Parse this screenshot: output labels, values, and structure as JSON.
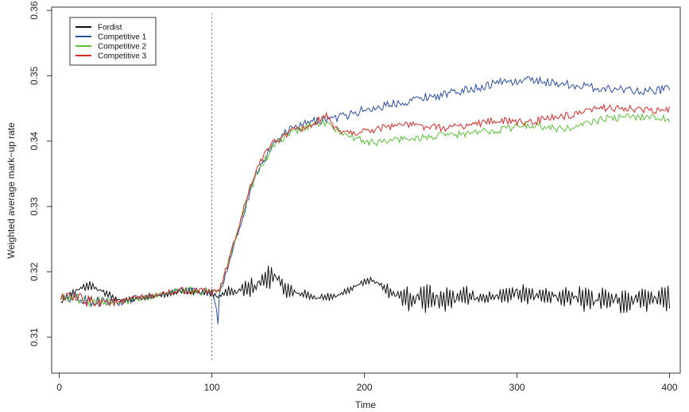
{
  "chart_data": {
    "type": "line",
    "title": "",
    "xlabel": "Time",
    "ylabel": "Weighted average mark−up rate",
    "xlim": [
      -5,
      407
    ],
    "ylim": [
      0.3045,
      0.3605
    ],
    "x_ticks": [
      {
        "value": 0,
        "label": "0"
      },
      {
        "value": 100,
        "label": "100"
      },
      {
        "value": 200,
        "label": "200"
      },
      {
        "value": 300,
        "label": "300"
      },
      {
        "value": 400,
        "label": "400"
      }
    ],
    "y_ticks": [
      {
        "value": 0.31,
        "label": "0.31"
      },
      {
        "value": 0.32,
        "label": "0.32"
      },
      {
        "value": 0.33,
        "label": "0.33"
      },
      {
        "value": 0.34,
        "label": "0.34"
      },
      {
        "value": 0.35,
        "label": "0.35"
      },
      {
        "value": 0.36,
        "label": "0.36"
      }
    ],
    "vline": {
      "x": 100,
      "ymin": 0.3065,
      "ymax": 0.3595,
      "style": "dotted",
      "color": "#555555"
    },
    "grid": false,
    "legend_position": "top-left",
    "series": [
      {
        "name": "Fordist",
        "color": "#111111",
        "x": [
          1,
          10,
          20,
          30,
          40,
          50,
          60,
          70,
          80,
          90,
          100,
          104,
          110,
          120,
          130,
          135,
          140,
          145,
          150,
          160,
          170,
          180,
          190,
          200,
          205,
          210,
          220,
          230,
          240,
          250,
          260,
          270,
          280,
          290,
          300,
          310,
          320,
          330,
          340,
          350,
          360,
          370,
          380,
          390,
          400
        ],
        "y": [
          0.3155,
          0.317,
          0.318,
          0.3168,
          0.3155,
          0.3158,
          0.3162,
          0.3165,
          0.317,
          0.317,
          0.3168,
          0.3162,
          0.317,
          0.3172,
          0.318,
          0.319,
          0.3195,
          0.3185,
          0.317,
          0.3165,
          0.316,
          0.3162,
          0.3172,
          0.3185,
          0.3188,
          0.318,
          0.3165,
          0.3158,
          0.316,
          0.3158,
          0.316,
          0.3162,
          0.316,
          0.3165,
          0.3168,
          0.3165,
          0.3162,
          0.316,
          0.3162,
          0.3158,
          0.316,
          0.3155,
          0.3158,
          0.316,
          0.3158
        ],
        "amplitude": [
          0.0008,
          0.0008,
          0.0007,
          0.0006,
          0.0005,
          0.0005,
          0.0005,
          0.0006,
          0.0006,
          0.0007,
          0.0007,
          0.0006,
          0.0007,
          0.0012,
          0.0018,
          0.002,
          0.0018,
          0.0016,
          0.0012,
          0.0009,
          0.0007,
          0.0006,
          0.0005,
          0.0005,
          0.0005,
          0.0006,
          0.0015,
          0.0022,
          0.0022,
          0.0022,
          0.002,
          0.0015,
          0.0008,
          0.0015,
          0.0018,
          0.0015,
          0.0012,
          0.0015,
          0.002,
          0.0022,
          0.002,
          0.0022,
          0.0022,
          0.0022,
          0.0022
        ]
      },
      {
        "name": "Competitive 1",
        "color": "#2c4fa0",
        "x": [
          1,
          10,
          20,
          30,
          40,
          50,
          60,
          70,
          80,
          90,
          100,
          103,
          104,
          105,
          110,
          115,
          120,
          125,
          130,
          140,
          150,
          160,
          170,
          180,
          190,
          200,
          210,
          220,
          230,
          240,
          250,
          260,
          270,
          280,
          290,
          300,
          310,
          320,
          330,
          340,
          350,
          360,
          370,
          380,
          390,
          400
        ],
        "y": [
          0.3162,
          0.316,
          0.3155,
          0.3155,
          0.3152,
          0.316,
          0.3162,
          0.3168,
          0.3172,
          0.317,
          0.3168,
          0.3145,
          0.312,
          0.3165,
          0.3205,
          0.3245,
          0.3282,
          0.3325,
          0.3355,
          0.3395,
          0.3415,
          0.3425,
          0.3432,
          0.3435,
          0.344,
          0.3448,
          0.3452,
          0.3458,
          0.3462,
          0.3468,
          0.347,
          0.3475,
          0.348,
          0.3485,
          0.3492,
          0.349,
          0.3495,
          0.349,
          0.3488,
          0.3485,
          0.3482,
          0.348,
          0.348,
          0.3478,
          0.3476,
          0.3482
        ],
        "amplitude": [
          0.0006,
          0.001,
          0.0012,
          0.001,
          0.0008,
          0.0006,
          0.0005,
          0.0005,
          0.0006,
          0.0008,
          0.0006,
          0.0002,
          0.0001,
          0.0003,
          0.0008,
          0.0008,
          0.0008,
          0.0008,
          0.0008,
          0.0008,
          0.0008,
          0.0008,
          0.0008,
          0.0008,
          0.0008,
          0.0008,
          0.0008,
          0.0008,
          0.0008,
          0.0008,
          0.0008,
          0.0008,
          0.0008,
          0.0008,
          0.0008,
          0.0008,
          0.0008,
          0.0008,
          0.0008,
          0.0008,
          0.0008,
          0.0008,
          0.0008,
          0.0008,
          0.0008,
          0.0008
        ]
      },
      {
        "name": "Competitive 2",
        "color": "#5bbf3a",
        "x": [
          1,
          10,
          20,
          30,
          40,
          50,
          60,
          70,
          80,
          90,
          100,
          105,
          110,
          115,
          120,
          125,
          130,
          140,
          150,
          160,
          170,
          175,
          180,
          190,
          200,
          210,
          220,
          230,
          240,
          250,
          260,
          270,
          280,
          290,
          300,
          310,
          320,
          330,
          340,
          350,
          360,
          370,
          380,
          390,
          400
        ],
        "y": [
          0.3162,
          0.316,
          0.3155,
          0.3155,
          0.3152,
          0.316,
          0.3162,
          0.3168,
          0.3172,
          0.317,
          0.3168,
          0.3172,
          0.321,
          0.325,
          0.3288,
          0.3325,
          0.3352,
          0.3392,
          0.341,
          0.342,
          0.3428,
          0.3428,
          0.3418,
          0.3408,
          0.34,
          0.3398,
          0.3402,
          0.3405,
          0.3405,
          0.3408,
          0.341,
          0.3412,
          0.3415,
          0.3418,
          0.3422,
          0.3425,
          0.3422,
          0.3418,
          0.3422,
          0.343,
          0.3435,
          0.3436,
          0.3438,
          0.3436,
          0.3434
        ],
        "amplitude": [
          0.0006,
          0.001,
          0.0012,
          0.001,
          0.0008,
          0.0006,
          0.0005,
          0.0005,
          0.0006,
          0.0008,
          0.0006,
          0.0004,
          0.0006,
          0.0007,
          0.0007,
          0.0007,
          0.0007,
          0.0007,
          0.0007,
          0.0007,
          0.0008,
          0.0008,
          0.0007,
          0.0007,
          0.0007,
          0.0007,
          0.0007,
          0.0007,
          0.0007,
          0.0007,
          0.0007,
          0.0007,
          0.0007,
          0.0007,
          0.0007,
          0.0007,
          0.0007,
          0.0007,
          0.0007,
          0.0007,
          0.0007,
          0.0007,
          0.0007,
          0.0007,
          0.0007
        ]
      },
      {
        "name": "Competitive 3",
        "color": "#d42a2a",
        "x": [
          1,
          10,
          20,
          30,
          40,
          50,
          60,
          70,
          80,
          90,
          100,
          105,
          110,
          115,
          120,
          125,
          130,
          140,
          150,
          160,
          170,
          175,
          180,
          190,
          200,
          210,
          220,
          230,
          240,
          250,
          260,
          270,
          280,
          290,
          300,
          310,
          320,
          330,
          340,
          350,
          360,
          370,
          380,
          390,
          400
        ],
        "y": [
          0.3162,
          0.316,
          0.3155,
          0.3155,
          0.3152,
          0.316,
          0.3162,
          0.3168,
          0.3172,
          0.317,
          0.3168,
          0.3172,
          0.3208,
          0.3248,
          0.3288,
          0.3328,
          0.3362,
          0.3398,
          0.3412,
          0.342,
          0.343,
          0.3435,
          0.342,
          0.3412,
          0.3415,
          0.342,
          0.3425,
          0.3425,
          0.3422,
          0.342,
          0.3422,
          0.3425,
          0.343,
          0.3432,
          0.3428,
          0.343,
          0.3435,
          0.3438,
          0.344,
          0.3448,
          0.3452,
          0.345,
          0.3448,
          0.3446,
          0.3448
        ],
        "amplitude": [
          0.0006,
          0.001,
          0.0012,
          0.001,
          0.0008,
          0.0006,
          0.0005,
          0.0005,
          0.0006,
          0.0008,
          0.0006,
          0.0004,
          0.0006,
          0.0007,
          0.0007,
          0.0007,
          0.0007,
          0.0007,
          0.0007,
          0.0007,
          0.0009,
          0.001,
          0.0007,
          0.0007,
          0.0007,
          0.0007,
          0.0007,
          0.0007,
          0.0007,
          0.0007,
          0.0007,
          0.0007,
          0.0007,
          0.0007,
          0.0007,
          0.0007,
          0.0007,
          0.0007,
          0.0007,
          0.0007,
          0.0007,
          0.0007,
          0.0007,
          0.0007,
          0.0007
        ]
      }
    ]
  }
}
